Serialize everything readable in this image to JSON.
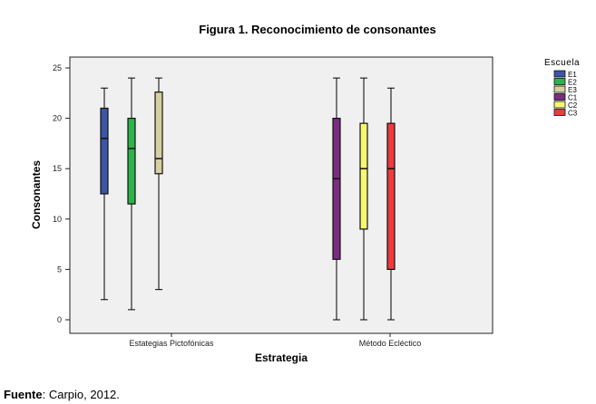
{
  "chart_data": {
    "type": "boxplot",
    "title": "Figura 1. Reconocimiento de consonantes",
    "xlabel": "Estrategia",
    "ylabel": "Consonantes",
    "ylim": [
      0,
      25
    ],
    "yticks": [
      "0",
      "5",
      "10",
      "15",
      "20",
      "25"
    ],
    "categories": [
      "Estategias Pictofónicas",
      "Método Ecléctico"
    ],
    "legend_title": "Escuela",
    "legend_placement": "top-right",
    "series": [
      {
        "name": "E1",
        "category": 0,
        "color": "#3b55a8",
        "min": 2,
        "q1": 12.5,
        "median": 18,
        "q3": 21,
        "max": 23
      },
      {
        "name": "E2",
        "category": 0,
        "color": "#2cb34a",
        "min": 1,
        "q1": 11.5,
        "median": 17,
        "q3": 20,
        "max": 24
      },
      {
        "name": "E3",
        "category": 0,
        "color": "#d6d0a0",
        "min": 3,
        "q1": 14.5,
        "median": 16,
        "q3": 22.6,
        "max": 24
      },
      {
        "name": "C1",
        "category": 1,
        "color": "#7b2d82",
        "min": 0,
        "q1": 6,
        "median": 14,
        "q3": 20,
        "max": 24
      },
      {
        "name": "C2",
        "category": 1,
        "color": "#f8f870",
        "min": 0,
        "q1": 9,
        "median": 15,
        "q3": 19.5,
        "max": 24
      },
      {
        "name": "C3",
        "category": 1,
        "color": "#ef3a3e",
        "min": 0,
        "q1": 5,
        "median": 15,
        "q3": 19.5,
        "max": 23
      }
    ]
  },
  "source": {
    "label": "Fuente",
    "text": ": Carpio, 2012."
  }
}
